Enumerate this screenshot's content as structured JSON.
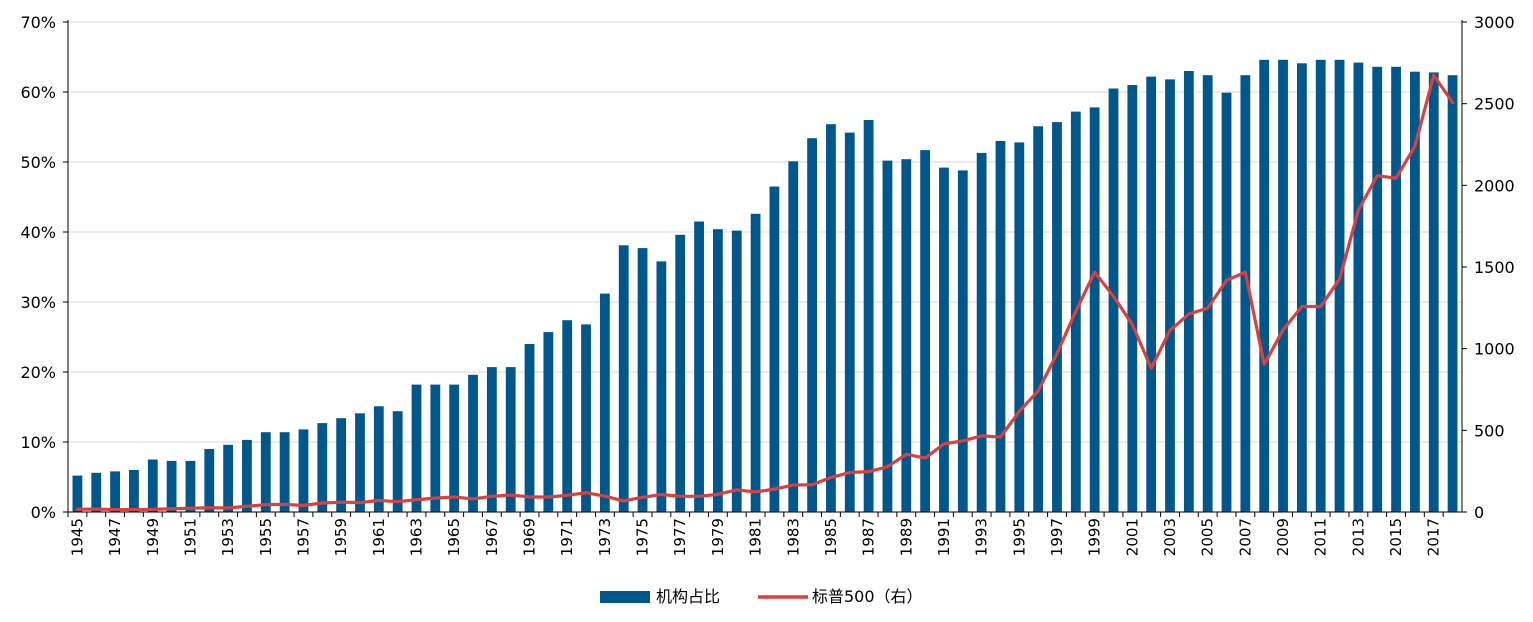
{
  "chart_data": {
    "type": "bar",
    "x": [
      1945,
      1946,
      1947,
      1948,
      1949,
      1950,
      1951,
      1952,
      1953,
      1954,
      1955,
      1956,
      1957,
      1958,
      1959,
      1960,
      1961,
      1962,
      1963,
      1964,
      1965,
      1966,
      1967,
      1968,
      1969,
      1970,
      1971,
      1972,
      1973,
      1974,
      1975,
      1976,
      1977,
      1978,
      1979,
      1980,
      1981,
      1982,
      1983,
      1984,
      1985,
      1986,
      1987,
      1988,
      1989,
      1990,
      1991,
      1992,
      1993,
      1994,
      1995,
      1996,
      1997,
      1998,
      1999,
      2000,
      2001,
      2002,
      2003,
      2004,
      2005,
      2006,
      2007,
      2008,
      2009,
      2010,
      2011,
      2012,
      2013,
      2014,
      2015,
      2016,
      2017,
      2018
    ],
    "x_tick_labels": [
      "1945",
      "1947",
      "1949",
      "1951",
      "1953",
      "1955",
      "1957",
      "1959",
      "1961",
      "1963",
      "1965",
      "1967",
      "1969",
      "1971",
      "1973",
      "1975",
      "1977",
      "1979",
      "1981",
      "1983",
      "1985",
      "1987",
      "1989",
      "1991",
      "1993",
      "1995",
      "1997",
      "1999",
      "2001",
      "2003",
      "2005",
      "2007",
      "2009",
      "2011",
      "2013",
      "2015",
      "2017"
    ],
    "y_left": {
      "ylim": [
        0,
        70
      ],
      "ticks": [
        0,
        10,
        20,
        30,
        40,
        50,
        60,
        70
      ],
      "tick_labels": [
        "0%",
        "10%",
        "20%",
        "30%",
        "40%",
        "50%",
        "60%",
        "70%"
      ]
    },
    "y_right": {
      "ylim": [
        0,
        3000
      ],
      "ticks": [
        0,
        500,
        1000,
        1500,
        2000,
        2500,
        3000
      ],
      "tick_labels": [
        "0",
        "500",
        "1000",
        "1500",
        "2000",
        "2500",
        "3000"
      ]
    },
    "grid": "horizontal",
    "legend_position": "bottom-center",
    "series": [
      {
        "name": "机构占比",
        "type": "bar",
        "axis": "left",
        "color": "#00578c",
        "values": [
          5.2,
          5.6,
          5.8,
          6.0,
          7.5,
          7.3,
          7.3,
          9.0,
          9.6,
          10.3,
          11.4,
          11.4,
          11.8,
          12.7,
          13.4,
          14.1,
          15.1,
          14.4,
          18.2,
          18.2,
          18.2,
          19.6,
          20.7,
          20.7,
          24.0,
          25.7,
          27.4,
          26.8,
          31.2,
          38.1,
          37.7,
          35.8,
          39.6,
          41.5,
          40.4,
          40.2,
          42.6,
          46.5,
          50.1,
          53.4,
          55.4,
          54.2,
          56.0,
          50.2,
          50.4,
          51.7,
          49.2,
          48.8,
          51.3,
          53.0,
          52.8,
          55.1,
          55.7,
          57.2,
          57.8,
          60.5,
          61.0,
          62.2,
          61.8,
          63.0,
          62.4,
          59.9,
          62.4,
          64.6,
          64.6,
          64.1,
          64.6,
          64.6,
          64.2,
          63.6,
          63.6,
          62.9,
          62.8,
          62.4
        ]
      },
      {
        "name": "标普500（右）",
        "type": "line",
        "axis": "right",
        "color": "#d94040",
        "values": [
          17,
          18,
          15,
          15,
          16,
          20,
          23,
          26,
          25,
          35,
          45,
          47,
          40,
          55,
          60,
          58,
          71,
          63,
          75,
          85,
          92,
          80,
          96,
          104,
          92,
          92,
          102,
          118,
          97,
          68,
          90,
          107,
          96,
          96,
          108,
          136,
          123,
          140,
          165,
          167,
          211,
          242,
          247,
          277,
          353,
          330,
          417,
          436,
          466,
          459,
          616,
          741,
          970,
          1229,
          1469,
          1320,
          1148,
          880,
          1112,
          1212,
          1248,
          1418,
          1468,
          903,
          1115,
          1258,
          1258,
          1426,
          1848,
          2059,
          2044,
          2239,
          2674,
          2507
        ]
      }
    ]
  }
}
